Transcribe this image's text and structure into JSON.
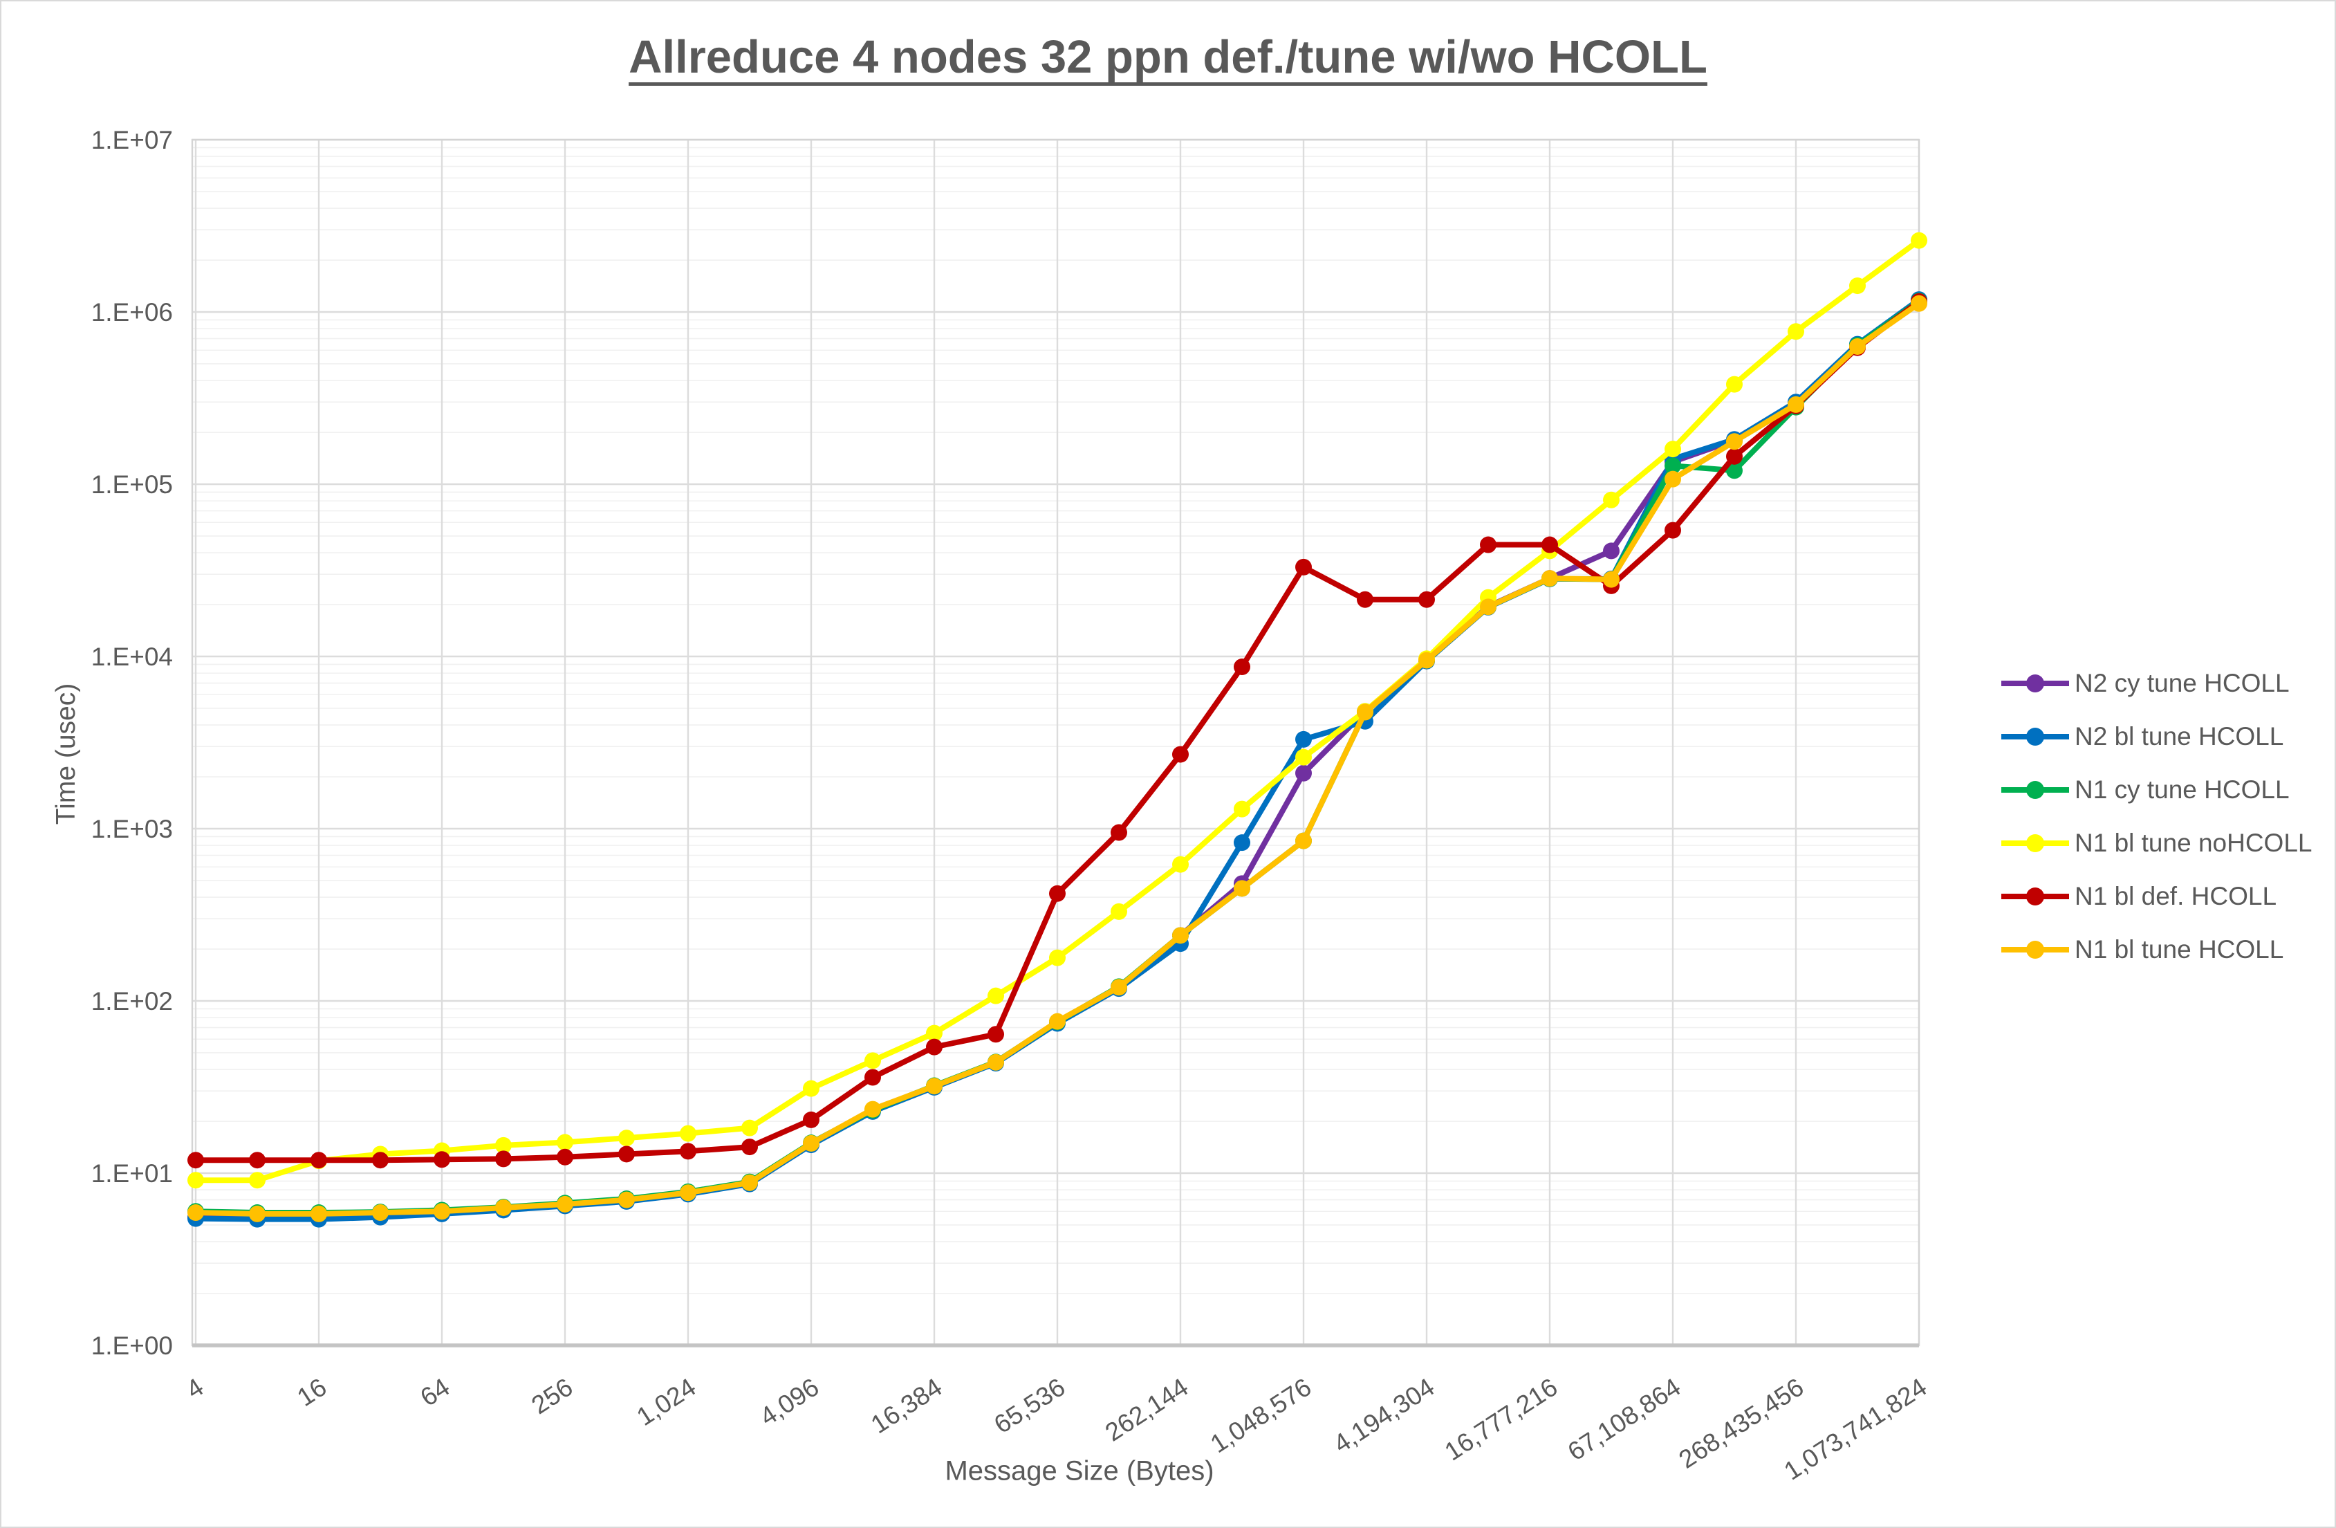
{
  "chart_data": {
    "type": "line",
    "title": "Allreduce 4 nodes 32 ppn def./tune wi/wo HCOLL",
    "xlabel": "Message Size (Bytes)",
    "ylabel": "Time (usec)",
    "x_scale": "log2",
    "y_scale": "log10",
    "ylim": [
      1,
      10000000
    ],
    "xlim": [
      4,
      1073741824
    ],
    "grid": "on",
    "legend_position": "right",
    "marker": "circle",
    "y_ticks": [
      {
        "value": 1,
        "label": "1.E+00"
      },
      {
        "value": 10,
        "label": "1.E+01"
      },
      {
        "value": 100,
        "label": "1.E+02"
      },
      {
        "value": 1000,
        "label": "1.E+03"
      },
      {
        "value": 10000,
        "label": "1.E+04"
      },
      {
        "value": 100000,
        "label": "1.E+05"
      },
      {
        "value": 1000000,
        "label": "1.E+06"
      },
      {
        "value": 10000000,
        "label": "1.E+07"
      }
    ],
    "x_ticks": [
      {
        "value": 4,
        "label": "4"
      },
      {
        "value": 16,
        "label": "16"
      },
      {
        "value": 64,
        "label": "64"
      },
      {
        "value": 256,
        "label": "256"
      },
      {
        "value": 1024,
        "label": "1,024"
      },
      {
        "value": 4096,
        "label": "4,096"
      },
      {
        "value": 16384,
        "label": "16,384"
      },
      {
        "value": 65536,
        "label": "65,536"
      },
      {
        "value": 262144,
        "label": "262,144"
      },
      {
        "value": 1048576,
        "label": "1,048,576"
      },
      {
        "value": 4194304,
        "label": "4,194,304"
      },
      {
        "value": 16777216,
        "label": "16,777,216"
      },
      {
        "value": 67108864,
        "label": "67,108,864"
      },
      {
        "value": 268435456,
        "label": "268,435,456"
      },
      {
        "value": 1073741824,
        "label": "1,073,741,824"
      }
    ],
    "x": [
      4,
      8,
      16,
      32,
      64,
      128,
      256,
      512,
      1024,
      2048,
      4096,
      8192,
      16384,
      32768,
      65536,
      131072,
      262144,
      524288,
      1048576,
      2097152,
      4194304,
      8388608,
      16777216,
      33554432,
      67108864,
      134217728,
      268435456,
      536870912,
      1073741824
    ],
    "series": [
      {
        "name": "N2 cy tune HCOLL",
        "color": "#7030A0",
        "values": [
          5.55,
          5.5,
          5.5,
          5.6,
          5.85,
          6.15,
          6.5,
          6.9,
          7.6,
          8.7,
          14.7,
          23,
          32,
          44,
          75,
          120,
          240,
          480,
          2100,
          4800,
          9500,
          19500,
          28400,
          41000,
          135000,
          180000,
          295000,
          640000,
          1150000
        ]
      },
      {
        "name": "N2 bl tune HCOLL",
        "color": "#0070C0",
        "values": [
          5.45,
          5.4,
          5.4,
          5.55,
          5.8,
          6.1,
          6.45,
          6.85,
          7.55,
          8.65,
          14.6,
          22.8,
          31.5,
          43.5,
          74,
          118,
          215,
          830,
          3300,
          4200,
          9400,
          19300,
          28200,
          28200,
          140000,
          182000,
          300000,
          650000,
          1180000
        ]
      },
      {
        "name": "N1 cy tune HCOLL",
        "color": "#00B050",
        "values": [
          6.0,
          5.9,
          5.9,
          5.95,
          6.1,
          6.35,
          6.7,
          7.1,
          7.8,
          8.9,
          15.0,
          23.2,
          32.2,
          44.2,
          75.5,
          121,
          240,
          450,
          850,
          4750,
          9500,
          19400,
          28300,
          28000,
          128000,
          120000,
          280000,
          640000,
          1160000
        ]
      },
      {
        "name": "N1 bl tune noHCOLL",
        "color": "#FFFF00",
        "values": [
          9.1,
          9.1,
          11.8,
          12.9,
          13.5,
          14.5,
          15.1,
          16.0,
          17.0,
          18.3,
          31,
          45,
          65,
          107,
          178,
          330,
          620,
          1300,
          2600,
          4800,
          9700,
          22000,
          41000,
          81000,
          160000,
          380000,
          770000,
          1420000,
          2600000
        ]
      },
      {
        "name": "N1 bl def. HCOLL",
        "color": "#C00000",
        "values": [
          11.9,
          11.9,
          11.9,
          11.9,
          12.0,
          12.1,
          12.4,
          12.9,
          13.4,
          14.2,
          20.4,
          36,
          54,
          64,
          420,
          950,
          2700,
          8700,
          33000,
          21400,
          21400,
          44500,
          44500,
          25700,
          54000,
          145000,
          285000,
          620000,
          1150000
        ]
      },
      {
        "name": "N1 bl tune HCOLL",
        "color": "#FFC000",
        "values": [
          5.9,
          5.8,
          5.8,
          5.9,
          6.0,
          6.3,
          6.6,
          7.0,
          7.7,
          8.8,
          14.9,
          23.5,
          32,
          44,
          76,
          120,
          240,
          450,
          850,
          4750,
          9500,
          19400,
          28400,
          28000,
          107000,
          177000,
          290000,
          630000,
          1120000
        ]
      }
    ],
    "colors": {
      "text": "#595959",
      "grid_major": "#DCDCDC",
      "grid_minor": "#F0F0F0",
      "plot_border": "#D4D4D4",
      "axis_line": "#C4C4C4"
    }
  }
}
